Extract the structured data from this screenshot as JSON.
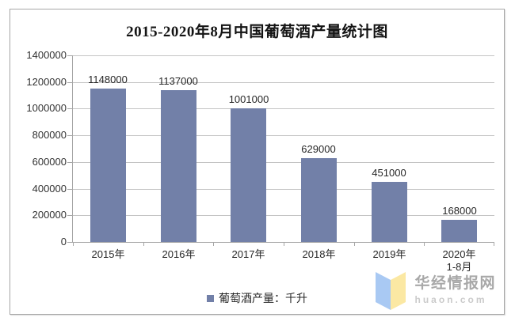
{
  "chart": {
    "title": "2015-2020年8月中国葡萄酒产量统计图",
    "legend_label": "葡萄酒产量：千升",
    "bar_color": "#7280A8",
    "grid_color": "#C4C4C4",
    "axis_color": "#A6A6A6"
  },
  "chart_data": {
    "type": "bar",
    "title": "2015-2020年8月中国葡萄酒产量统计图",
    "categories": [
      "2015年",
      "2016年",
      "2017年",
      "2018年",
      "2019年",
      "2020年"
    ],
    "category_sublabels": [
      "",
      "",
      "",
      "",
      "",
      "1-8月"
    ],
    "values": [
      1148000,
      1137000,
      1001000,
      629000,
      451000,
      168000
    ],
    "data_labels": [
      "1148000",
      "1137000",
      "1001000",
      "629000",
      "451000",
      "168000"
    ],
    "ylim": [
      0,
      1400000
    ],
    "ytick_step": 200000,
    "ytick_labels": [
      "0",
      "200000",
      "400000",
      "600000",
      "800000",
      "1000000",
      "1200000",
      "1400000"
    ],
    "legend": [
      "葡萄酒产量：千升"
    ],
    "legend_position": "bottom",
    "grid": true,
    "xlabel": "",
    "ylabel": ""
  },
  "watermark": {
    "site_name": "华经情报网",
    "site_url": "huaon.com",
    "logo_blue": "#A9C9F3",
    "logo_yellow": "#FBE8A3"
  }
}
